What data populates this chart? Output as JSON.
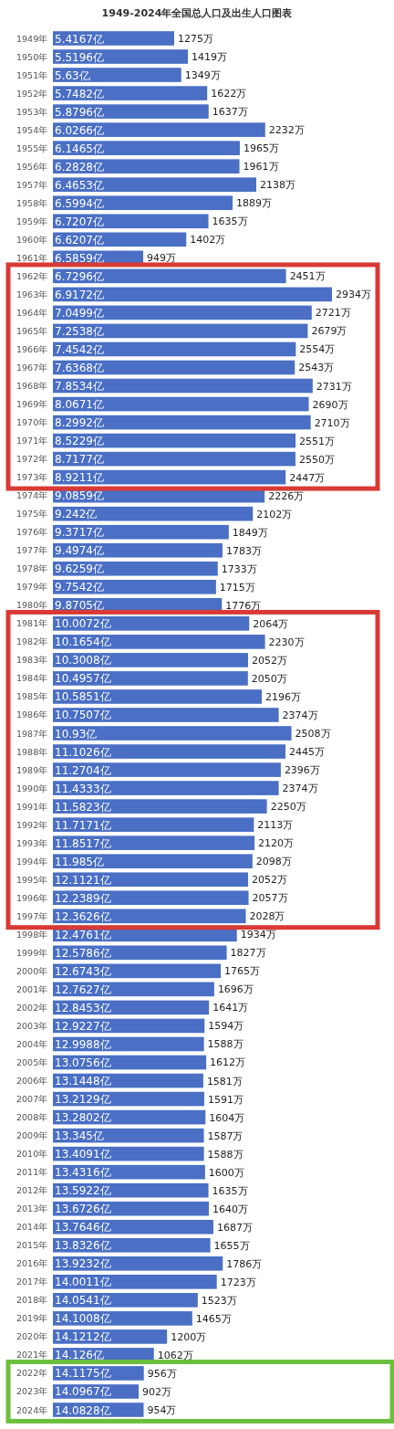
{
  "chart_data": {
    "type": "bar",
    "orientation": "horizontal",
    "title": "1949-2024年全国总人口及出生人口图表",
    "color": "#4a6fc4",
    "categories": [
      "1949年",
      "1950年",
      "1951年",
      "1952年",
      "1953年",
      "1954年",
      "1955年",
      "1956年",
      "1957年",
      "1958年",
      "1959年",
      "1960年",
      "1961年",
      "1962年",
      "1963年",
      "1964年",
      "1965年",
      "1966年",
      "1967年",
      "1968年",
      "1969年",
      "1970年",
      "1971年",
      "1972年",
      "1973年",
      "1974年",
      "1975年",
      "1976年",
      "1977年",
      "1978年",
      "1979年",
      "1980年",
      "1981年",
      "1982年",
      "1983年",
      "1984年",
      "1985年",
      "1986年",
      "1987年",
      "1988年",
      "1989年",
      "1990年",
      "1991年",
      "1992年",
      "1993年",
      "1994年",
      "1995年",
      "1996年",
      "1997年",
      "1998年",
      "1999年",
      "2000年",
      "2001年",
      "2002年",
      "2003年",
      "2004年",
      "2005年",
      "2006年",
      "2007年",
      "2008年",
      "2009年",
      "2010年",
      "2011年",
      "2012年",
      "2013年",
      "2014年",
      "2015年",
      "2016年",
      "2017年",
      "2018年",
      "2019年",
      "2020年",
      "2021年",
      "2022年",
      "2023年",
      "2024年"
    ],
    "values": [
      1275,
      1419,
      1349,
      1622,
      1637,
      2232,
      1965,
      1961,
      2138,
      1889,
      1635,
      1402,
      949,
      2451,
      2934,
      2721,
      2679,
      2554,
      2543,
      2731,
      2690,
      2710,
      2551,
      2550,
      2447,
      2226,
      2102,
      1849,
      1783,
      1733,
      1715,
      1776,
      2064,
      2230,
      2052,
      2050,
      2196,
      2374,
      2508,
      2445,
      2396,
      2374,
      2250,
      2113,
      2120,
      2098,
      2052,
      2057,
      2028,
      1934,
      1827,
      1765,
      1696,
      1641,
      1594,
      1588,
      1612,
      1581,
      1591,
      1604,
      1587,
      1588,
      1600,
      1635,
      1640,
      1687,
      1655,
      1786,
      1723,
      1523,
      1465,
      1200,
      1062,
      956,
      902,
      954
    ],
    "value_labels": [
      "1275万",
      "1419万",
      "1349万",
      "1622万",
      "1637万",
      "2232万",
      "1965万",
      "1961万",
      "2138万",
      "1889万",
      "1635万",
      "1402万",
      "949万",
      "2451万",
      "2934万",
      "2721万",
      "2679万",
      "2554万",
      "2543万",
      "2731万",
      "2690万",
      "2710万",
      "2551万",
      "2550万",
      "2447万",
      "2226万",
      "2102万",
      "1849万",
      "1783万",
      "1733万",
      "1715万",
      "1776万",
      "2064万",
      "2230万",
      "2052万",
      "2050万",
      "2196万",
      "2374万",
      "2508万",
      "2445万",
      "2396万",
      "2374万",
      "2250万",
      "2113万",
      "2120万",
      "2098万",
      "2052万",
      "2057万",
      "2028万",
      "1934万",
      "1827万",
      "1765万",
      "1696万",
      "1641万",
      "1594万",
      "1588万",
      "1612万",
      "1581万",
      "1591万",
      "1604万",
      "1587万",
      "1588万",
      "1600万",
      "1635万",
      "1640万",
      "1687万",
      "1655万",
      "1786万",
      "1723万",
      "1523万",
      "1465万",
      "1200万",
      "1062万",
      "956万",
      "902万",
      "954万"
    ],
    "annotations": [
      {
        "text": "5.4167亿",
        "y": "1949年"
      },
      {
        "text": "5.5196亿",
        "y": "1950年"
      },
      {
        "text": "5.63亿",
        "y": "1951年"
      },
      {
        "text": "5.7482亿",
        "y": "1952年"
      },
      {
        "text": "5.8796亿",
        "y": "1953年"
      },
      {
        "text": "6.0266亿",
        "y": "1954年"
      },
      {
        "text": "6.1465亿",
        "y": "1955年"
      },
      {
        "text": "6.2828亿",
        "y": "1956年"
      },
      {
        "text": "6.4653亿",
        "y": "1957年"
      },
      {
        "text": "6.5994亿",
        "y": "1958年"
      },
      {
        "text": "6.7207亿",
        "y": "1959年"
      },
      {
        "text": "6.6207亿",
        "y": "1960年"
      },
      {
        "text": "6.5859亿",
        "y": "1961年"
      },
      {
        "text": "6.7296亿",
        "y": "1962年"
      },
      {
        "text": "6.9172亿",
        "y": "1963年"
      },
      {
        "text": "7.0499亿",
        "y": "1964年"
      },
      {
        "text": "7.2538亿",
        "y": "1965年"
      },
      {
        "text": "7.4542亿",
        "y": "1966年"
      },
      {
        "text": "7.6368亿",
        "y": "1967年"
      },
      {
        "text": "7.8534亿",
        "y": "1968年"
      },
      {
        "text": "8.0671亿",
        "y": "1969年"
      },
      {
        "text": "8.2992亿",
        "y": "1970年"
      },
      {
        "text": "8.5229亿",
        "y": "1971年"
      },
      {
        "text": "8.7177亿",
        "y": "1972年"
      },
      {
        "text": "8.9211亿",
        "y": "1973年"
      },
      {
        "text": "9.0859亿",
        "y": "1974年"
      },
      {
        "text": "9.242亿",
        "y": "1975年"
      },
      {
        "text": "9.3717亿",
        "y": "1976年"
      },
      {
        "text": "9.4974亿",
        "y": "1977年"
      },
      {
        "text": "9.6259亿",
        "y": "1978年"
      },
      {
        "text": "9.7542亿",
        "y": "1979年"
      },
      {
        "text": "9.8705亿",
        "y": "1980年"
      },
      {
        "text": "10.0072亿",
        "y": "1981年"
      },
      {
        "text": "10.1654亿",
        "y": "1982年"
      },
      {
        "text": "10.3008亿",
        "y": "1983年"
      },
      {
        "text": "10.4957亿",
        "y": "1984年"
      },
      {
        "text": "10.5851亿",
        "y": "1985年"
      },
      {
        "text": "10.7507亿",
        "y": "1986年"
      },
      {
        "text": "10.93亿",
        "y": "1987年"
      },
      {
        "text": "11.1026亿",
        "y": "1988年"
      },
      {
        "text": "11.2704亿",
        "y": "1989年"
      },
      {
        "text": "11.4333亿",
        "y": "1990年"
      },
      {
        "text": "11.5823亿",
        "y": "1991年"
      },
      {
        "text": "11.7171亿",
        "y": "1992年"
      },
      {
        "text": "11.8517亿",
        "y": "1993年"
      },
      {
        "text": "11.985亿",
        "y": "1994年"
      },
      {
        "text": "12.1121亿",
        "y": "1995年"
      },
      {
        "text": "12.2389亿",
        "y": "1996年"
      },
      {
        "text": "12.3626亿",
        "y": "1997年"
      },
      {
        "text": "12.4761亿",
        "y": "1998年"
      },
      {
        "text": "12.5786亿",
        "y": "1999年"
      },
      {
        "text": "12.6743亿",
        "y": "2000年"
      },
      {
        "text": "12.7627亿",
        "y": "2001年"
      },
      {
        "text": "12.8453亿",
        "y": "2002年"
      },
      {
        "text": "12.9227亿",
        "y": "2003年"
      },
      {
        "text": "12.9988亿",
        "y": "2004年"
      },
      {
        "text": "13.0756亿",
        "y": "2005年"
      },
      {
        "text": "13.1448亿",
        "y": "2006年"
      },
      {
        "text": "13.2129亿",
        "y": "2007年"
      },
      {
        "text": "13.2802亿",
        "y": "2008年"
      },
      {
        "text": "13.345亿",
        "y": "2009年"
      },
      {
        "text": "13.4091亿",
        "y": "2010年"
      },
      {
        "text": "13.4316亿",
        "y": "2011年"
      },
      {
        "text": "13.5922亿",
        "y": "2012年"
      },
      {
        "text": "13.6726亿",
        "y": "2013年"
      },
      {
        "text": "13.7646亿",
        "y": "2014年"
      },
      {
        "text": "13.8326亿",
        "y": "2015年"
      },
      {
        "text": "13.9232亿",
        "y": "2016年"
      },
      {
        "text": "14.0011亿",
        "y": "2017年"
      },
      {
        "text": "14.0541亿",
        "y": "2018年"
      },
      {
        "text": "14.1008亿",
        "y": "2019年"
      },
      {
        "text": "14.1212亿",
        "y": "2020年"
      },
      {
        "text": "14.126亿",
        "y": "2021年"
      },
      {
        "text": "14.1175亿",
        "y": "2022年"
      },
      {
        "text": "14.0967亿",
        "y": "2023年"
      },
      {
        "text": "14.0828亿",
        "y": "2024年"
      }
    ]
  }
}
